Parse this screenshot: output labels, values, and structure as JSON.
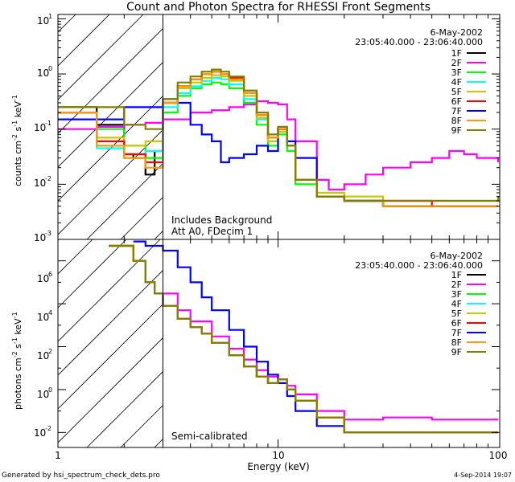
{
  "title": "Count and Photon Spectra for RHESSI Front Segments",
  "footer_left": "Generated by hsi_spectrum_check_dets.pro",
  "footer_right": "4-Sep-2014 19:07",
  "xlabel": "Energy (keV)",
  "x_ticks": [
    "1",
    "10",
    "100"
  ],
  "legend": {
    "date": "6-May-2002",
    "time_range": "23:05:40.000 - 23:06:40.000",
    "entries": [
      {
        "label": "1F",
        "color": "#000000"
      },
      {
        "label": "2F",
        "color": "#ff00ff"
      },
      {
        "label": "3F",
        "color": "#00ff00"
      },
      {
        "label": "4F",
        "color": "#00ffff"
      },
      {
        "label": "5F",
        "color": "#c8c800"
      },
      {
        "label": "6F",
        "color": "#ff0000"
      },
      {
        "label": "7F",
        "color": "#0000ff"
      },
      {
        "label": "8F",
        "color": "#ff9900"
      },
      {
        "label": "9F",
        "color": "#808000"
      }
    ]
  },
  "top_panel": {
    "ylabel_main": "counts cm",
    "ylabel_sup1": "-2",
    "ylabel_mid": " s",
    "ylabel_sup2": "-1",
    "ylabel_mid2": " keV",
    "ylabel_sup3": "-1",
    "y_ticks": [
      "1",
      "0",
      "-1",
      "-2",
      "-3"
    ],
    "annotation1": "Includes Background",
    "annotation2": "Att A0, FDecim 1"
  },
  "bottom_panel": {
    "ylabel_main": "photons cm",
    "ylabel_sup1": "-2",
    "ylabel_mid": " s",
    "ylabel_sup2": "-1",
    "ylabel_mid2": " keV",
    "ylabel_sup3": "-1",
    "y_ticks": [
      "6",
      "4",
      "2",
      "0",
      "-2"
    ],
    "annotation": "Semi-calibrated"
  },
  "chart_data": [
    {
      "type": "line",
      "title": "Count and Photon Spectra for RHESSI Front Segments",
      "xlabel": "Energy (keV)",
      "ylabel": "counts cm^-2 s^-1 keV^-1",
      "xscale": "log",
      "yscale": "log",
      "xlim": [
        1,
        100
      ],
      "ylim": [
        0.001,
        12
      ],
      "series": [
        {
          "name": "1F",
          "x": [
            1,
            1.5,
            2,
            2.2,
            2.5,
            2.75,
            3,
            3.5,
            4,
            4.5,
            5,
            5.5,
            6,
            7,
            8,
            9,
            10,
            11,
            12,
            15,
            20,
            30,
            50,
            100
          ],
          "y": [
            0.25,
            0.12,
            0.035,
            0.03,
            0.015,
            0.04,
            0.3,
            0.6,
            0.8,
            1.0,
            1.1,
            1.0,
            0.8,
            0.45,
            0.18,
            0.07,
            0.1,
            0.05,
            0.012,
            0.006,
            0.005,
            0.004,
            0.004,
            0.004
          ]
        },
        {
          "name": "2F",
          "x": [
            1,
            1.5,
            2,
            2.5,
            3,
            4,
            5,
            6,
            7,
            8,
            9,
            10,
            11,
            12,
            15,
            17,
            20,
            25,
            30,
            40,
            50,
            60,
            70,
            80,
            100
          ],
          "y": [
            0.1,
            0.11,
            0.12,
            0.13,
            0.15,
            0.2,
            0.22,
            0.25,
            0.28,
            0.32,
            0.3,
            0.28,
            0.15,
            0.06,
            0.012,
            0.008,
            0.01,
            0.015,
            0.02,
            0.025,
            0.03,
            0.04,
            0.035,
            0.03,
            0.025
          ]
        },
        {
          "name": "3F",
          "x": [
            1,
            1.5,
            2,
            2.5,
            3,
            3.5,
            4,
            4.5,
            5,
            5.5,
            6,
            7,
            8,
            9,
            10,
            11,
            12,
            15,
            20,
            30,
            50,
            100
          ],
          "y": [
            0.2,
            0.1,
            0.05,
            0.03,
            0.2,
            0.4,
            0.55,
            0.65,
            0.7,
            0.65,
            0.55,
            0.3,
            0.12,
            0.05,
            0.08,
            0.04,
            0.01,
            0.006,
            0.005,
            0.004,
            0.004,
            0.004
          ]
        },
        {
          "name": "4F",
          "x": [
            1,
            1.5,
            2,
            2.5,
            3,
            3.5,
            4,
            4.5,
            5,
            5.5,
            6,
            7,
            8,
            9,
            10,
            11,
            12,
            15,
            20,
            30,
            50,
            100
          ],
          "y": [
            0.2,
            0.045,
            0.03,
            0.04,
            0.25,
            0.45,
            0.6,
            0.75,
            0.85,
            0.8,
            0.65,
            0.35,
            0.15,
            0.06,
            0.09,
            0.05,
            0.012,
            0.006,
            0.005,
            0.004,
            0.004,
            0.004
          ]
        },
        {
          "name": "5F",
          "x": [
            1,
            1.5,
            2,
            2.5,
            3,
            3.5,
            4,
            4.5,
            5,
            5.5,
            6,
            7,
            8,
            9,
            10,
            11,
            12,
            15,
            20,
            30,
            50,
            100
          ],
          "y": [
            0.2,
            0.07,
            0.05,
            0.06,
            0.3,
            0.55,
            0.7,
            0.85,
            0.95,
            0.9,
            0.75,
            0.4,
            0.16,
            0.06,
            0.09,
            0.05,
            0.012,
            0.007,
            0.006,
            0.005,
            0.005,
            0.005
          ]
        },
        {
          "name": "6F",
          "x": [
            1,
            1.5,
            2,
            2.5,
            3,
            3.5,
            4,
            4.5,
            5,
            5.5,
            6,
            7,
            8,
            9,
            10,
            11,
            12,
            15,
            20,
            30,
            50,
            100
          ],
          "y": [
            0.2,
            0.06,
            0.035,
            0.025,
            0.3,
            0.6,
            0.8,
            1.0,
            1.1,
            1.0,
            0.85,
            0.45,
            0.18,
            0.07,
            0.1,
            0.05,
            0.012,
            0.006,
            0.005,
            0.005,
            0.004,
            0.004
          ]
        },
        {
          "name": "7F",
          "x": [
            1,
            2,
            3,
            3.5,
            4,
            4.5,
            5,
            5.5,
            6,
            7,
            8,
            9,
            10,
            11,
            12,
            15,
            20,
            30,
            50,
            100
          ],
          "y": [
            0.15,
            0.25,
            0.35,
            0.3,
            0.12,
            0.08,
            0.06,
            0.025,
            0.03,
            0.035,
            0.05,
            0.04,
            0.1,
            0.06,
            0.03,
            0.006,
            0.005,
            0.004,
            0.004,
            0.004
          ]
        },
        {
          "name": "8F",
          "x": [
            1,
            1.5,
            2,
            2.5,
            3,
            3.5,
            4,
            4.5,
            5,
            5.5,
            6,
            7,
            8,
            9,
            10,
            11,
            12,
            15,
            20,
            30,
            50,
            100
          ],
          "y": [
            0.2,
            0.05,
            0.03,
            0.02,
            0.3,
            0.6,
            0.8,
            1.0,
            1.1,
            1.0,
            0.8,
            0.45,
            0.18,
            0.07,
            0.1,
            0.05,
            0.012,
            0.006,
            0.005,
            0.004,
            0.004,
            0.004
          ]
        },
        {
          "name": "9F",
          "x": [
            1,
            1.5,
            2,
            2.5,
            3,
            3.5,
            4,
            4.5,
            5,
            5.5,
            6,
            7,
            8,
            9,
            10,
            11,
            12,
            15,
            20,
            30,
            50,
            100
          ],
          "y": [
            0.25,
            0.25,
            0.12,
            0.1,
            0.35,
            0.7,
            0.9,
            1.1,
            1.2,
            1.1,
            0.9,
            0.5,
            0.2,
            0.08,
            0.11,
            0.05,
            0.012,
            0.006,
            0.005,
            0.005,
            0.005,
            0.006
          ]
        }
      ]
    },
    {
      "type": "line",
      "xlabel": "Energy (keV)",
      "ylabel": "photons cm^-2 s^-1 keV^-1",
      "xscale": "log",
      "yscale": "log",
      "xlim": [
        1,
        100
      ],
      "ylim": [
        0.002,
        10000000
      ],
      "series": [
        {
          "name": "1F",
          "x": [
            1.7,
            2.2,
            2.5,
            2.75,
            3,
            3.5,
            4,
            4.5,
            5,
            6,
            7,
            8,
            9,
            10,
            11,
            12,
            15,
            20,
            30,
            50,
            100
          ],
          "y": [
            5000000,
            1000000,
            100000,
            30000,
            8000,
            2000,
            800,
            400,
            150,
            40,
            12,
            4,
            2,
            3,
            1,
            0.3,
            0.05,
            0.01,
            0.01,
            0.01,
            0.01
          ]
        },
        {
          "name": "2F",
          "x": [
            3,
            3.5,
            4,
            5,
            6,
            7,
            8,
            9,
            10,
            11,
            12,
            15,
            20,
            30,
            50,
            100
          ],
          "y": [
            30000,
            5000,
            1500,
            300,
            80,
            25,
            8,
            4,
            3,
            1.5,
            0.6,
            0.1,
            0.04,
            0.05,
            0.04,
            0.04
          ]
        },
        {
          "name": "3F",
          "x": [
            1.7,
            2.2,
            2.5,
            2.75,
            3,
            3.5,
            4,
            4.5,
            5,
            6,
            7,
            8,
            9,
            10,
            11,
            12,
            15,
            20,
            30,
            50,
            100
          ],
          "y": [
            5000000,
            1000000,
            100000,
            30000,
            8000,
            2000,
            800,
            400,
            150,
            40,
            12,
            4,
            2,
            3,
            1,
            0.3,
            0.05,
            0.01,
            0.01,
            0.01,
            0.01
          ]
        },
        {
          "name": "4F",
          "x": [
            1.7,
            2.2,
            2.5,
            2.75,
            3,
            3.5,
            4,
            4.5,
            5,
            6,
            7,
            8,
            9,
            10,
            11,
            12,
            15,
            20,
            30,
            50,
            100
          ],
          "y": [
            5000000,
            1000000,
            100000,
            30000,
            8000,
            2000,
            800,
            400,
            150,
            40,
            12,
            4,
            2,
            3,
            1,
            0.3,
            0.05,
            0.01,
            0.01,
            0.01,
            0.01
          ]
        },
        {
          "name": "5F",
          "x": [
            1.7,
            2.2,
            2.5,
            2.75,
            3,
            3.5,
            4,
            4.5,
            5,
            6,
            7,
            8,
            9,
            10,
            11,
            12,
            15,
            20,
            30,
            50,
            100
          ],
          "y": [
            5000000,
            1000000,
            100000,
            30000,
            8000,
            2000,
            800,
            400,
            150,
            40,
            12,
            4,
            2,
            3,
            1,
            0.3,
            0.05,
            0.01,
            0.01,
            0.01,
            0.01
          ]
        },
        {
          "name": "6F",
          "x": [
            1.7,
            2.2,
            2.5,
            2.75,
            3,
            3.5,
            4,
            4.5,
            5,
            6,
            7,
            8,
            9,
            10,
            11,
            12,
            15,
            20,
            30,
            50,
            100
          ],
          "y": [
            5000000,
            1000000,
            100000,
            30000,
            8000,
            2000,
            800,
            400,
            150,
            40,
            12,
            4,
            2,
            3,
            1,
            0.3,
            0.05,
            0.01,
            0.01,
            0.01,
            0.01
          ]
        },
        {
          "name": "7F",
          "x": [
            2.2,
            2.5,
            3,
            3.5,
            4,
            4.5,
            5,
            6,
            7,
            8,
            9,
            10,
            11,
            12,
            15,
            20,
            30,
            50,
            100
          ],
          "y": [
            8000000,
            5000000,
            3000000,
            500000,
            100000,
            20000,
            5000,
            600,
            100,
            20,
            5,
            2,
            0.5,
            0.1,
            0.02,
            0.01,
            0.01,
            0.01,
            0.01
          ]
        },
        {
          "name": "8F",
          "x": [
            1.7,
            2.2,
            2.5,
            2.75,
            3,
            3.5,
            4,
            4.5,
            5,
            6,
            7,
            8,
            9,
            10,
            11,
            12,
            15,
            20,
            30,
            50,
            100
          ],
          "y": [
            5000000,
            1000000,
            100000,
            30000,
            8000,
            2000,
            800,
            400,
            150,
            40,
            12,
            4,
            2,
            3,
            1,
            0.3,
            0.05,
            0.01,
            0.01,
            0.01,
            0.01
          ]
        },
        {
          "name": "9F",
          "x": [
            1.7,
            2.2,
            2.5,
            2.75,
            3,
            3.5,
            4,
            4.5,
            5,
            6,
            7,
            8,
            9,
            10,
            11,
            12,
            15,
            20,
            30,
            50,
            100
          ],
          "y": [
            5000000,
            1000000,
            100000,
            30000,
            8000,
            2000,
            800,
            400,
            150,
            40,
            12,
            4,
            2,
            3,
            1,
            0.3,
            0.05,
            0.01,
            0.01,
            0.01,
            0.01
          ]
        }
      ]
    }
  ]
}
